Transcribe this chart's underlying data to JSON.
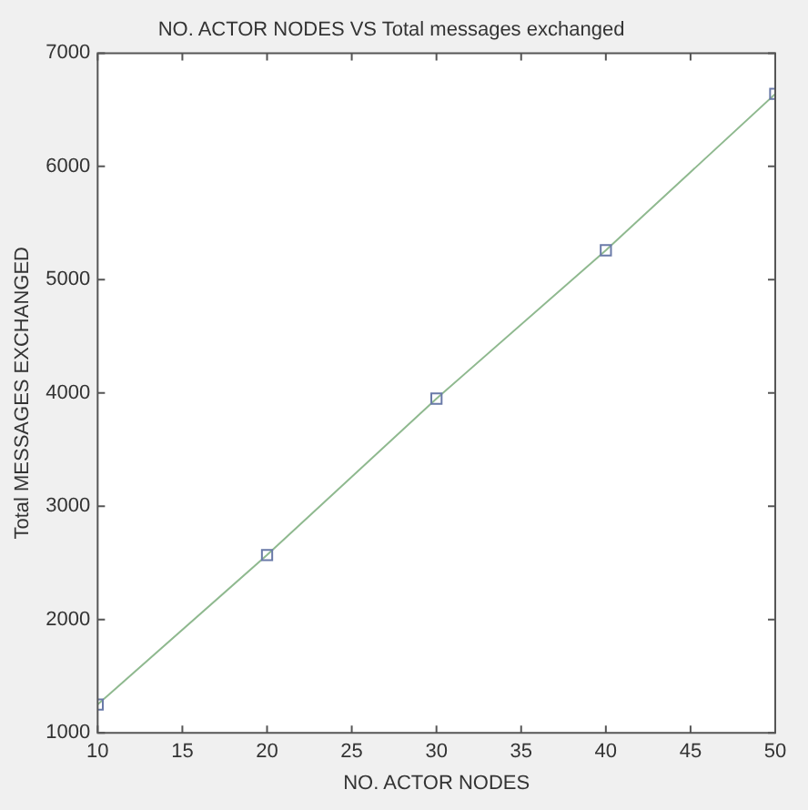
{
  "chart_data": {
    "type": "line",
    "title": "NO. ACTOR NODES VS Total messages exchanged",
    "xlabel": "NO. ACTOR NODES",
    "ylabel": "Total MESSAGES EXCHANGED",
    "x": [
      10,
      20,
      30,
      40,
      50
    ],
    "series": [
      {
        "color": "#8fb98f",
        "values": [
          1250,
          2570,
          3950,
          5260,
          6640
        ]
      }
    ],
    "xlim": [
      10,
      50
    ],
    "xticks": [
      10,
      15,
      20,
      25,
      30,
      35,
      40,
      45,
      50
    ],
    "ylim": [
      1000,
      7000
    ],
    "yticks": [
      1000,
      2000,
      3000,
      4000,
      5000,
      6000,
      7000
    ],
    "grid": false,
    "legend": false,
    "marker": "square",
    "line_style": "solid"
  }
}
